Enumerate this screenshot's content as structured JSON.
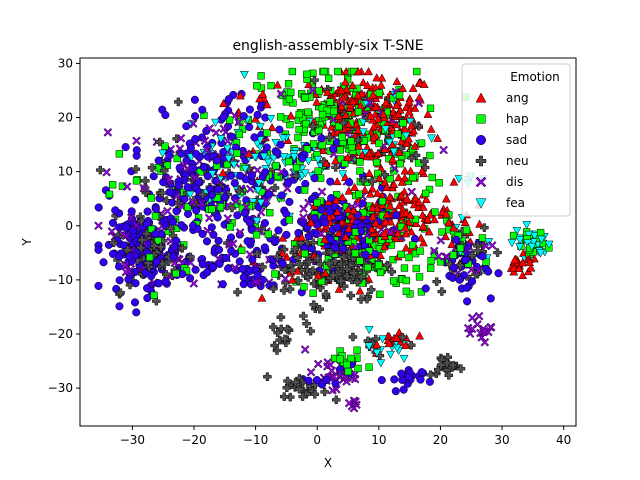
{
  "chart_data": {
    "type": "scatter",
    "title": "english-assembly-six T-SNE",
    "xlabel": "X",
    "ylabel": "Y",
    "xlim": [
      -38.5,
      42
    ],
    "ylim": [
      -37,
      31
    ],
    "xticks": [
      -30,
      -20,
      -10,
      0,
      10,
      20,
      30,
      40
    ],
    "yticks": [
      -30,
      -20,
      -10,
      0,
      10,
      20,
      30
    ],
    "xtick_labels": [
      "−30",
      "−20",
      "−10",
      "0",
      "10",
      "20",
      "30",
      "40"
    ],
    "ytick_labels": [
      "−30",
      "−20",
      "−10",
      "0",
      "10",
      "20",
      "30"
    ],
    "grid": false,
    "legend": {
      "title": "Emotion",
      "position": "top-right"
    },
    "series": [
      {
        "name": "ang",
        "color": "#ff0000",
        "marker": "triangle-up",
        "clusters": [
          {
            "cx": 10,
            "cy": 19,
            "sx": 4.5,
            "sy": 5,
            "n": 170
          },
          {
            "cx": 4,
            "cy": 22,
            "sx": 3,
            "sy": 3.5,
            "n": 60
          },
          {
            "cx": 13,
            "cy": 2,
            "sx": 4.5,
            "sy": 3.5,
            "n": 130
          },
          {
            "cx": 5,
            "cy": 0,
            "sx": 4,
            "sy": 2.5,
            "n": 60
          },
          {
            "cx": 33,
            "cy": -7.5,
            "sx": 1.5,
            "sy": 1,
            "n": 20
          },
          {
            "cx": 13,
            "cy": -21,
            "sx": 1.5,
            "sy": 1,
            "n": 15
          },
          {
            "cx": 24,
            "cy": 0,
            "sx": 2,
            "sy": 2,
            "n": 15
          },
          {
            "cx": 1,
            "cy": -3,
            "sx": 6,
            "sy": 5,
            "n": 30
          },
          {
            "cx": -10,
            "cy": 18,
            "sx": 4,
            "sy": 4,
            "n": 20
          }
        ]
      },
      {
        "name": "hap",
        "color": "#00ff00",
        "marker": "square",
        "clusters": [
          {
            "cx": 2,
            "cy": 19,
            "sx": 7,
            "sy": 6,
            "n": 180
          },
          {
            "cx": 8,
            "cy": -3,
            "sx": 6,
            "sy": 5,
            "n": 110
          },
          {
            "cx": -18,
            "cy": 5,
            "sx": 7,
            "sy": 6,
            "n": 60
          },
          {
            "cx": 35,
            "cy": -4,
            "sx": 1.5,
            "sy": 1.5,
            "n": 15
          },
          {
            "cx": 5,
            "cy": -25,
            "sx": 1.5,
            "sy": 1.2,
            "n": 15
          },
          {
            "cx": 24,
            "cy": -4,
            "sx": 2.5,
            "sy": 3,
            "n": 20
          },
          {
            "cx": -28,
            "cy": -5,
            "sx": 3,
            "sy": 3,
            "n": 10
          },
          {
            "cx": 14,
            "cy": 10,
            "sx": 4,
            "sy": 3,
            "n": 20
          }
        ]
      },
      {
        "name": "sad",
        "color": "#3300ee",
        "marker": "circle",
        "clusters": [
          {
            "cx": -28,
            "cy": -5,
            "sx": 3,
            "sy": 3.5,
            "n": 130
          },
          {
            "cx": -17,
            "cy": 7,
            "sx": 7,
            "sy": 6,
            "n": 200
          },
          {
            "cx": 4,
            "cy": -1,
            "sx": 4,
            "sy": 3.5,
            "n": 120
          },
          {
            "cx": -10,
            "cy": -5,
            "sx": 4,
            "sy": 4,
            "n": 50
          },
          {
            "cx": 24,
            "cy": -7,
            "sx": 2.5,
            "sy": 3,
            "n": 40
          },
          {
            "cx": 14,
            "cy": -28.5,
            "sx": 1.5,
            "sy": 1.2,
            "n": 20
          },
          {
            "cx": -20,
            "cy": -7,
            "sx": 3,
            "sy": 2,
            "n": 20
          },
          {
            "cx": -14,
            "cy": 19,
            "sx": 3,
            "sy": 3,
            "n": 20
          },
          {
            "cx": 2,
            "cy": -28,
            "sx": 1.8,
            "sy": 1.2,
            "n": 10
          },
          {
            "cx": -1,
            "cy": 12,
            "sx": 3,
            "sy": 2.5,
            "n": 15
          }
        ]
      },
      {
        "name": "neu",
        "color": "#505050",
        "marker": "plus",
        "clusters": [
          {
            "cx": 2,
            "cy": -7,
            "sx": 4.5,
            "sy": 3.5,
            "n": 150
          },
          {
            "cx": -27,
            "cy": -5,
            "sx": 3,
            "sy": 3.5,
            "n": 60
          },
          {
            "cx": -2,
            "cy": -30,
            "sx": 1.8,
            "sy": 1,
            "n": 25
          },
          {
            "cx": 21,
            "cy": -26,
            "sx": 1.5,
            "sy": 1,
            "n": 20
          },
          {
            "cx": -19,
            "cy": 8,
            "sx": 7,
            "sy": 6,
            "n": 50
          },
          {
            "cx": -5,
            "cy": -19,
            "sx": 2.5,
            "sy": 1.5,
            "n": 15
          },
          {
            "cx": 8,
            "cy": 16,
            "sx": 6,
            "sy": 5,
            "n": 40
          },
          {
            "cx": 24,
            "cy": -5,
            "sx": 2.5,
            "sy": 3,
            "n": 20
          },
          {
            "cx": 10,
            "cy": -22,
            "sx": 2,
            "sy": 2,
            "n": 10
          }
        ]
      },
      {
        "name": "dis",
        "color": "#9900ee",
        "marker": "x",
        "clusters": [
          {
            "cx": -17,
            "cy": 8,
            "sx": 7,
            "sy": 6,
            "n": 90
          },
          {
            "cx": -28,
            "cy": -5,
            "sx": 3,
            "sy": 3,
            "n": 40
          },
          {
            "cx": 2,
            "cy": -27.5,
            "sx": 2,
            "sy": 1.3,
            "n": 25
          },
          {
            "cx": 27,
            "cy": -19,
            "sx": 1.2,
            "sy": 1,
            "n": 15
          },
          {
            "cx": 6,
            "cy": -1,
            "sx": 5,
            "sy": 4,
            "n": 30
          },
          {
            "cx": 24,
            "cy": -5,
            "sx": 2.5,
            "sy": 3,
            "n": 15
          },
          {
            "cx": 4,
            "cy": 19,
            "sx": 5,
            "sy": 5,
            "n": 30
          },
          {
            "cx": -12,
            "cy": -8,
            "sx": 4,
            "sy": 3,
            "n": 15
          },
          {
            "cx": 6,
            "cy": -33,
            "sx": 1,
            "sy": 0.6,
            "n": 6
          }
        ]
      },
      {
        "name": "fea",
        "color": "#00ffff",
        "marker": "triangle-down",
        "clusters": [
          {
            "cx": 35,
            "cy": -3,
            "sx": 1.5,
            "sy": 1.5,
            "n": 25
          },
          {
            "cx": -14,
            "cy": 10,
            "sx": 6,
            "sy": 5,
            "n": 60
          },
          {
            "cx": -3,
            "cy": 12,
            "sx": 3,
            "sy": 3,
            "n": 30
          },
          {
            "cx": 11,
            "cy": -22,
            "sx": 1.3,
            "sy": 1.5,
            "n": 15
          },
          {
            "cx": 12,
            "cy": 18,
            "sx": 3,
            "sy": 4,
            "n": 20
          },
          {
            "cx": 25,
            "cy": 9,
            "sx": 1.5,
            "sy": 1.5,
            "n": 6
          },
          {
            "cx": 24,
            "cy": -4,
            "sx": 2.5,
            "sy": 2.5,
            "n": 10
          }
        ]
      }
    ]
  }
}
